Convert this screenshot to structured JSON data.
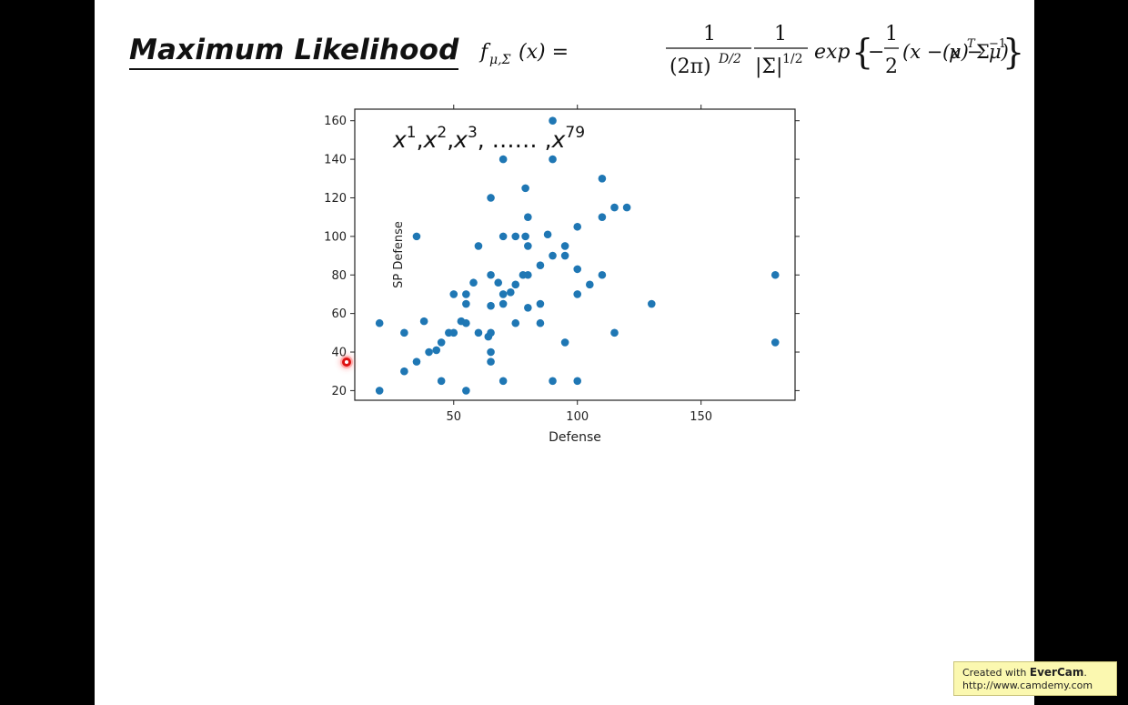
{
  "slide": {
    "title": "Maximum Likelihood"
  },
  "formula": {
    "lhs": "f",
    "lhs_sub": "μ,Σ",
    "lhs_arg": "(x) =",
    "frac1_num": "1",
    "frac1_den": "(2π)",
    "frac1_den_sup": "D/2",
    "frac2_num": "1",
    "frac2_den": "|Σ|",
    "frac2_den_sup": "1/2",
    "exp": "exp",
    "half_num": "1",
    "half_den": "2",
    "minus": "−",
    "quad_a": "(x − μ)",
    "quad_a_sup": "T",
    "sigma": "Σ",
    "sigma_sup": "−1",
    "quad_b": "(x − μ)"
  },
  "annotation": {
    "x_parts": [
      {
        "base": "x",
        "sup": "1",
        "after": ","
      },
      {
        "base": "x",
        "sup": "2",
        "after": ","
      },
      {
        "base": "x",
        "sup": "3",
        "after": ", …… ,"
      },
      {
        "base": "x",
        "sup": "79",
        "after": ""
      }
    ]
  },
  "watermark": {
    "prefix": "Created with ",
    "brand": "EverCam",
    "suffix": ".",
    "url": "http://www.camdemy.com"
  },
  "chart_data": {
    "type": "scatter",
    "xlabel": "Defense",
    "ylabel": "SP Defense",
    "xlim": [
      10,
      188
    ],
    "ylim": [
      15,
      166
    ],
    "xticks": [
      50,
      100,
      150
    ],
    "yticks": [
      20,
      40,
      60,
      80,
      100,
      120,
      140,
      160
    ],
    "grid": false,
    "color": "#1f77b4",
    "points": [
      {
        "x": 20,
        "y": 55
      },
      {
        "x": 20,
        "y": 20
      },
      {
        "x": 30,
        "y": 50
      },
      {
        "x": 30,
        "y": 30
      },
      {
        "x": 35,
        "y": 35
      },
      {
        "x": 35,
        "y": 100
      },
      {
        "x": 38,
        "y": 56
      },
      {
        "x": 40,
        "y": 40
      },
      {
        "x": 43,
        "y": 41
      },
      {
        "x": 45,
        "y": 45
      },
      {
        "x": 45,
        "y": 25
      },
      {
        "x": 48,
        "y": 50
      },
      {
        "x": 50,
        "y": 50
      },
      {
        "x": 50,
        "y": 70
      },
      {
        "x": 53,
        "y": 56
      },
      {
        "x": 55,
        "y": 55
      },
      {
        "x": 55,
        "y": 65
      },
      {
        "x": 55,
        "y": 70
      },
      {
        "x": 55,
        "y": 20
      },
      {
        "x": 58,
        "y": 76
      },
      {
        "x": 60,
        "y": 95
      },
      {
        "x": 60,
        "y": 50
      },
      {
        "x": 64,
        "y": 48
      },
      {
        "x": 65,
        "y": 50
      },
      {
        "x": 65,
        "y": 35
      },
      {
        "x": 65,
        "y": 40
      },
      {
        "x": 65,
        "y": 64
      },
      {
        "x": 65,
        "y": 80
      },
      {
        "x": 65,
        "y": 120
      },
      {
        "x": 68,
        "y": 76
      },
      {
        "x": 70,
        "y": 100
      },
      {
        "x": 70,
        "y": 70
      },
      {
        "x": 70,
        "y": 65
      },
      {
        "x": 70,
        "y": 140
      },
      {
        "x": 70,
        "y": 25
      },
      {
        "x": 73,
        "y": 71
      },
      {
        "x": 75,
        "y": 100
      },
      {
        "x": 75,
        "y": 75
      },
      {
        "x": 75,
        "y": 55
      },
      {
        "x": 78,
        "y": 80
      },
      {
        "x": 79,
        "y": 100
      },
      {
        "x": 79,
        "y": 125
      },
      {
        "x": 80,
        "y": 80
      },
      {
        "x": 80,
        "y": 95
      },
      {
        "x": 80,
        "y": 110
      },
      {
        "x": 80,
        "y": 63
      },
      {
        "x": 85,
        "y": 85
      },
      {
        "x": 85,
        "y": 65
      },
      {
        "x": 85,
        "y": 55
      },
      {
        "x": 88,
        "y": 101
      },
      {
        "x": 90,
        "y": 160
      },
      {
        "x": 90,
        "y": 140
      },
      {
        "x": 90,
        "y": 90
      },
      {
        "x": 90,
        "y": 25
      },
      {
        "x": 95,
        "y": 95
      },
      {
        "x": 95,
        "y": 90
      },
      {
        "x": 95,
        "y": 45
      },
      {
        "x": 100,
        "y": 105
      },
      {
        "x": 100,
        "y": 83
      },
      {
        "x": 100,
        "y": 70
      },
      {
        "x": 100,
        "y": 25
      },
      {
        "x": 105,
        "y": 75
      },
      {
        "x": 110,
        "y": 130
      },
      {
        "x": 110,
        "y": 110
      },
      {
        "x": 110,
        "y": 80
      },
      {
        "x": 115,
        "y": 115
      },
      {
        "x": 115,
        "y": 50
      },
      {
        "x": 120,
        "y": 115
      },
      {
        "x": 130,
        "y": 65
      },
      {
        "x": 180,
        "y": 80
      },
      {
        "x": 180,
        "y": 45
      }
    ]
  }
}
